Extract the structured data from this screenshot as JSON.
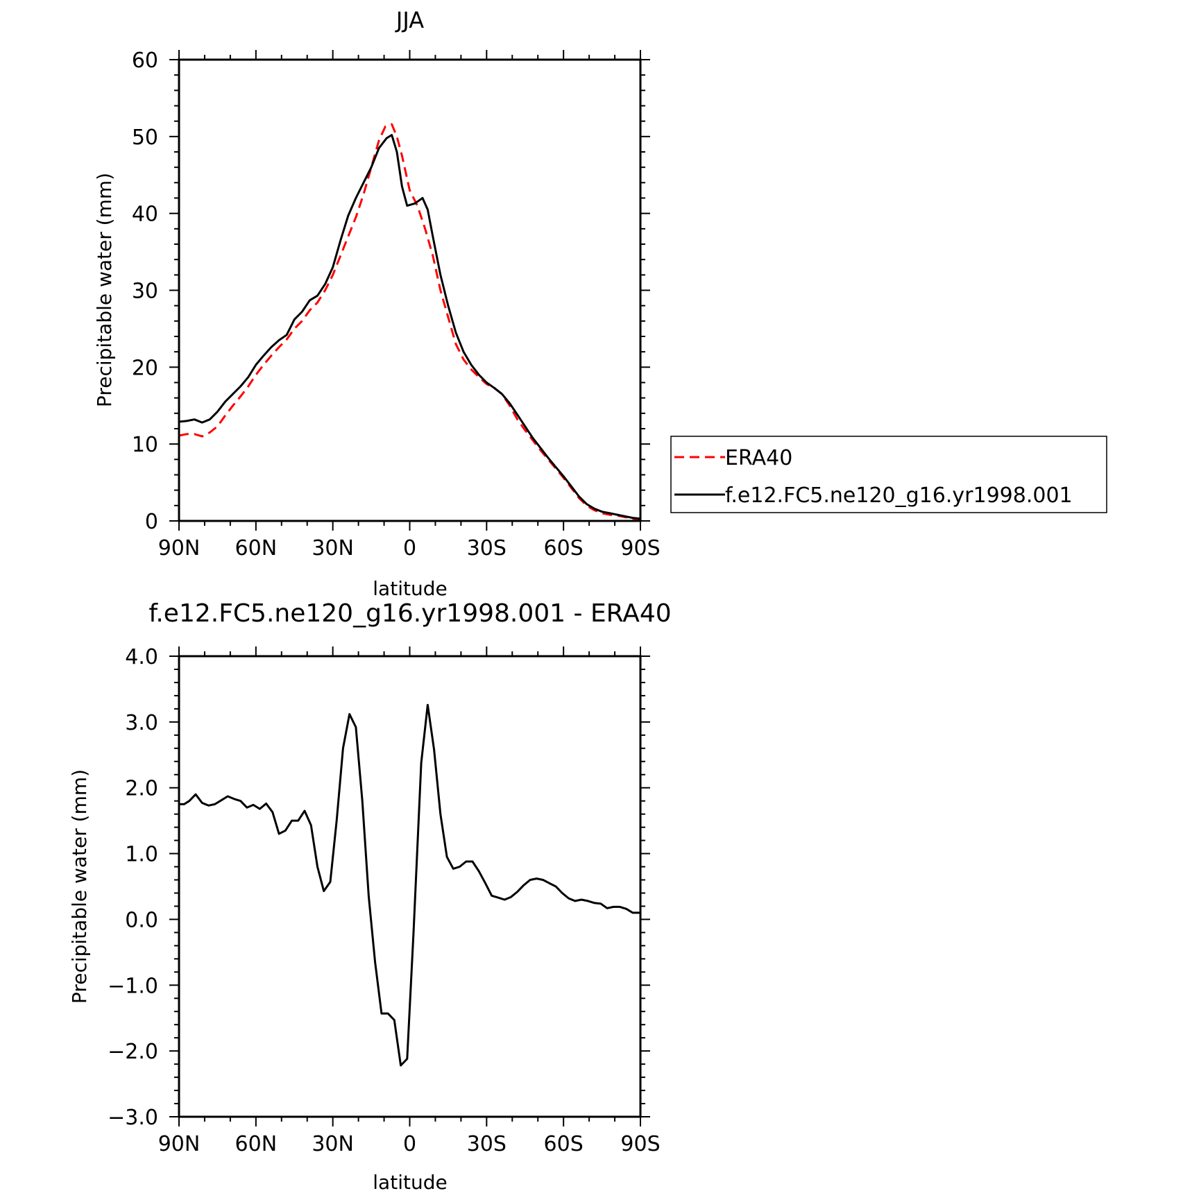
{
  "chart_data": [
    {
      "type": "line",
      "title": "JJA",
      "xlabel": "latitude",
      "ylabel": "Precipitable water (mm)",
      "xlim": [
        90,
        -90
      ],
      "ylim": [
        0,
        60
      ],
      "x_tick_values": [
        90,
        60,
        30,
        0,
        -30,
        -60,
        -90
      ],
      "x_tick_labels": [
        "90N",
        "60N",
        "30N",
        "0",
        "30S",
        "60S",
        "90S"
      ],
      "y_tick_values": [
        0,
        10,
        20,
        30,
        40,
        50,
        60
      ],
      "y_tick_labels": [
        "0",
        "10",
        "20",
        "30",
        "40",
        "50",
        "60"
      ],
      "legend_position": "right",
      "series": [
        {
          "name": "ERA40",
          "color": "#ff0000",
          "style": "dashed",
          "points": [
            [
              90,
              11.1
            ],
            [
              87,
              11.3
            ],
            [
              84,
              11.3
            ],
            [
              81,
              11.0
            ],
            [
              78,
              11.5
            ],
            [
              75,
              12.3
            ],
            [
              72,
              13.7
            ],
            [
              69,
              15.0
            ],
            [
              66,
              16.2
            ],
            [
              63,
              17.5
            ],
            [
              60,
              19.0
            ],
            [
              57,
              20.3
            ],
            [
              54,
              21.5
            ],
            [
              51,
              22.6
            ],
            [
              48,
              23.6
            ],
            [
              45,
              25.0
            ],
            [
              42,
              26.0
            ],
            [
              39,
              27.4
            ],
            [
              36,
              28.4
            ],
            [
              33,
              30.0
            ],
            [
              30,
              32.0
            ],
            [
              27,
              34.5
            ],
            [
              24,
              37.0
            ],
            [
              21,
              39.5
            ],
            [
              18,
              42.5
            ],
            [
              15,
              46.0
            ],
            [
              12,
              49.5
            ],
            [
              9.5,
              51.3
            ],
            [
              7,
              51.6
            ],
            [
              5,
              50.0
            ],
            [
              3,
              47.5
            ],
            [
              0,
              43.0
            ],
            [
              -3,
              41.0
            ],
            [
              -6,
              38.0
            ],
            [
              -9,
              34.5
            ],
            [
              -12,
              30.0
            ],
            [
              -15,
              26.5
            ],
            [
              -18,
              23.0
            ],
            [
              -21,
              21.0
            ],
            [
              -24,
              19.7
            ],
            [
              -27,
              18.7
            ],
            [
              -30,
              17.8
            ],
            [
              -33,
              17.3
            ],
            [
              -36,
              16.5
            ],
            [
              -39,
              15.0
            ],
            [
              -42,
              13.2
            ],
            [
              -45,
              11.8
            ],
            [
              -48,
              10.5
            ],
            [
              -51,
              9.2
            ],
            [
              -54,
              8.0
            ],
            [
              -57,
              6.8
            ],
            [
              -60,
              5.6
            ],
            [
              -63,
              4.3
            ],
            [
              -66,
              3.0
            ],
            [
              -69,
              2.0
            ],
            [
              -72,
              1.4
            ],
            [
              -75,
              1.0
            ],
            [
              -78,
              0.8
            ],
            [
              -81,
              0.7
            ],
            [
              -84,
              0.5
            ],
            [
              -87,
              0.3
            ],
            [
              -90,
              0.2
            ]
          ]
        },
        {
          "name": "f.e12.FC5.ne120_g16.yr1998.001",
          "color": "#000000",
          "style": "solid",
          "points": [
            [
              90,
              12.9
            ],
            [
              87,
              13.0
            ],
            [
              84,
              13.2
            ],
            [
              81,
              12.8
            ],
            [
              78,
              13.2
            ],
            [
              75,
              14.2
            ],
            [
              72,
              15.5
            ],
            [
              69,
              16.5
            ],
            [
              66,
              17.5
            ],
            [
              63,
              18.7
            ],
            [
              60,
              20.3
            ],
            [
              57,
              21.5
            ],
            [
              54,
              22.6
            ],
            [
              51,
              23.5
            ],
            [
              48,
              24.2
            ],
            [
              45,
              26.2
            ],
            [
              42,
              27.2
            ],
            [
              39,
              28.7
            ],
            [
              36,
              29.3
            ],
            [
              33,
              30.8
            ],
            [
              30,
              33.0
            ],
            [
              27,
              36.5
            ],
            [
              24,
              39.7
            ],
            [
              21,
              42.0
            ],
            [
              18,
              44.0
            ],
            [
              15,
              46.0
            ],
            [
              12,
              48.5
            ],
            [
              9,
              49.8
            ],
            [
              7,
              50.2
            ],
            [
              5,
              48.0
            ],
            [
              3,
              43.5
            ],
            [
              1,
              41.0
            ],
            [
              -2,
              41.3
            ],
            [
              -5,
              42.0
            ],
            [
              -7,
              40.5
            ],
            [
              -9,
              37.0
            ],
            [
              -12,
              32.0
            ],
            [
              -15,
              28.0
            ],
            [
              -18,
              24.5
            ],
            [
              -21,
              22.0
            ],
            [
              -24,
              20.3
            ],
            [
              -27,
              19.0
            ],
            [
              -30,
              18.0
            ],
            [
              -33,
              17.3
            ],
            [
              -36,
              16.5
            ],
            [
              -39,
              15.3
            ],
            [
              -42,
              13.8
            ],
            [
              -45,
              12.3
            ],
            [
              -48,
              10.8
            ],
            [
              -51,
              9.5
            ],
            [
              -54,
              8.2
            ],
            [
              -57,
              7.0
            ],
            [
              -60,
              5.8
            ],
            [
              -63,
              4.5
            ],
            [
              -66,
              3.2
            ],
            [
              -69,
              2.2
            ],
            [
              -72,
              1.6
            ],
            [
              -75,
              1.2
            ],
            [
              -78,
              1.0
            ],
            [
              -81,
              0.8
            ],
            [
              -84,
              0.6
            ],
            [
              -87,
              0.4
            ],
            [
              -90,
              0.3
            ]
          ]
        }
      ]
    },
    {
      "type": "line",
      "title": "f.e12.FC5.ne120_g16.yr1998.001 - ERA40",
      "xlabel": "latitude",
      "ylabel": "Precipitable water (mm)",
      "xlim": [
        90,
        -90
      ],
      "ylim": [
        -3.0,
        4.0
      ],
      "x_tick_values": [
        90,
        60,
        30,
        0,
        -30,
        -60,
        -90
      ],
      "x_tick_labels": [
        "90N",
        "60N",
        "30N",
        "0",
        "30S",
        "60S",
        "90S"
      ],
      "y_tick_values": [
        -3,
        -2,
        -1,
        0,
        1,
        2,
        3,
        4
      ],
      "y_tick_labels": [
        "−3.0",
        "−2.0",
        "−1.0",
        "0.0",
        "1.0",
        "2.0",
        "3.0",
        "4.0"
      ],
      "series": [
        {
          "color": "#000000",
          "style": "solid",
          "points": [
            [
              90,
              1.75
            ],
            [
              88,
              1.75
            ],
            [
              86,
              1.8
            ],
            [
              83.5,
              1.9
            ],
            [
              81,
              1.77
            ],
            [
              78.5,
              1.73
            ],
            [
              76,
              1.75
            ],
            [
              73.5,
              1.81
            ],
            [
              71,
              1.87
            ],
            [
              68.5,
              1.83
            ],
            [
              66,
              1.8
            ],
            [
              63.5,
              1.7
            ],
            [
              61,
              1.74
            ],
            [
              58.5,
              1.68
            ],
            [
              56,
              1.76
            ],
            [
              53.5,
              1.63
            ],
            [
              51,
              1.3
            ],
            [
              48.5,
              1.35
            ],
            [
              46,
              1.5
            ],
            [
              43.5,
              1.5
            ],
            [
              41,
              1.65
            ],
            [
              38.5,
              1.43
            ],
            [
              36,
              0.8
            ],
            [
              33.5,
              0.43
            ],
            [
              31,
              0.57
            ],
            [
              28.5,
              1.5
            ],
            [
              26,
              2.6
            ],
            [
              23.5,
              3.12
            ],
            [
              21,
              2.92
            ],
            [
              18.5,
              1.8
            ],
            [
              16,
              0.35
            ],
            [
              13.5,
              -0.65
            ],
            [
              11,
              -1.43
            ],
            [
              8.5,
              -1.43
            ],
            [
              6,
              -1.53
            ],
            [
              3.5,
              -2.22
            ],
            [
              1,
              -2.12
            ],
            [
              -1.5,
              -0.2
            ],
            [
              -4.5,
              2.38
            ],
            [
              -7,
              3.26
            ],
            [
              -9.5,
              2.58
            ],
            [
              -12,
              1.6
            ],
            [
              -14.5,
              0.95
            ],
            [
              -17,
              0.77
            ],
            [
              -19.5,
              0.8
            ],
            [
              -22,
              0.88
            ],
            [
              -24.5,
              0.88
            ],
            [
              -27,
              0.73
            ],
            [
              -29.5,
              0.55
            ],
            [
              -32,
              0.36
            ],
            [
              -34.5,
              0.33
            ],
            [
              -37,
              0.3
            ],
            [
              -39.5,
              0.34
            ],
            [
              -42,
              0.42
            ],
            [
              -44.5,
              0.52
            ],
            [
              -47,
              0.6
            ],
            [
              -49.5,
              0.62
            ],
            [
              -52,
              0.6
            ],
            [
              -54.5,
              0.55
            ],
            [
              -57,
              0.5
            ],
            [
              -59.5,
              0.4
            ],
            [
              -62,
              0.32
            ],
            [
              -64.5,
              0.28
            ],
            [
              -67,
              0.3
            ],
            [
              -69.5,
              0.28
            ],
            [
              -72,
              0.25
            ],
            [
              -74.5,
              0.24
            ],
            [
              -77,
              0.17
            ],
            [
              -79.5,
              0.19
            ],
            [
              -82,
              0.19
            ],
            [
              -84.5,
              0.16
            ],
            [
              -87,
              0.1
            ],
            [
              -90,
              0.1
            ]
          ]
        }
      ]
    }
  ]
}
